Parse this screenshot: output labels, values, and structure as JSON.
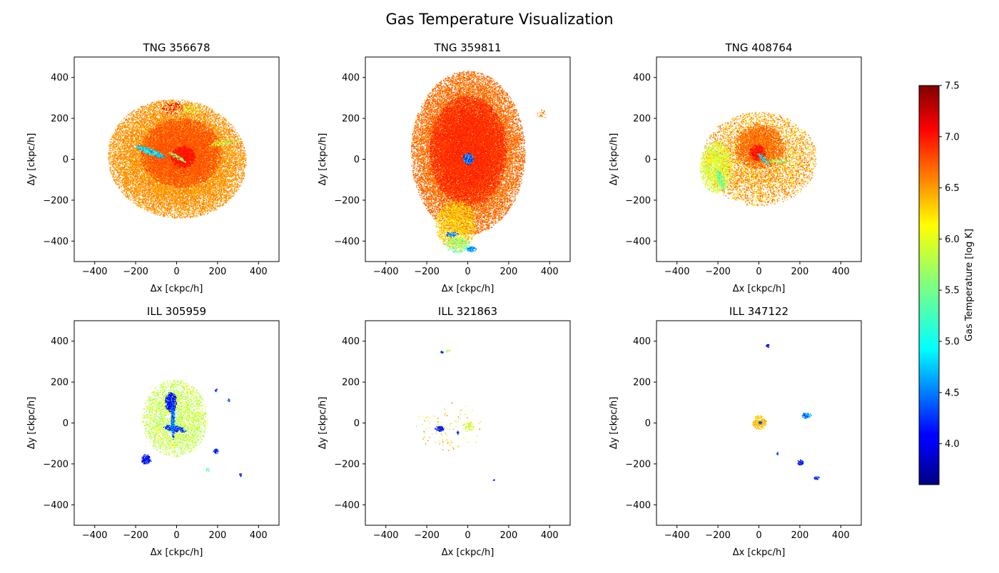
{
  "figure_title": "Gas Temperature Visualization",
  "colors": {
    "axes": "#000000",
    "background": "#ffffff"
  },
  "chart_data": {
    "type": "heatmap",
    "title": "Gas Temperature Visualization",
    "shared": {
      "xlabel": "Δx [ckpc/h]",
      "ylabel": "Δy [ckpc/h]",
      "xlim": [
        -500,
        500
      ],
      "ylim": [
        -500,
        500
      ],
      "xticks": [
        -400,
        -200,
        0,
        200,
        400
      ],
      "yticks": [
        -400,
        -200,
        0,
        200,
        400
      ],
      "grid": false
    },
    "colorbar": {
      "label": "Gas Temperature [log K]",
      "colormap": "jet",
      "range": [
        3.6,
        7.5
      ],
      "ticks": [
        4.0,
        4.5,
        5.0,
        5.5,
        6.0,
        6.5,
        7.0,
        7.5
      ],
      "tick_labels": [
        "4.0",
        "4.5",
        "5.0",
        "5.5",
        "6.0",
        "6.5",
        "7.0",
        "7.5"
      ],
      "placement": "right"
    },
    "panels": [
      {
        "title": "TNG 356678",
        "features": [
          {
            "kind": "blob",
            "cx": 0,
            "cy": 0,
            "rx": 340,
            "ry": 290,
            "angle": -10,
            "temp": 6.45,
            "density": 0.85,
            "jitter": 0.15
          },
          {
            "kind": "blob",
            "cx": 20,
            "cy": 30,
            "rx": 200,
            "ry": 170,
            "angle": 0,
            "temp": 6.7,
            "density": 0.85,
            "jitter": 0.1
          },
          {
            "kind": "blob",
            "cx": 30,
            "cy": 10,
            "rx": 60,
            "ry": 55,
            "angle": 0,
            "temp": 6.95,
            "density": 0.9,
            "jitter": 0.05
          },
          {
            "kind": "blob",
            "cx": -130,
            "cy": 35,
            "rx": 80,
            "ry": 15,
            "angle": -20,
            "temp": 5.0,
            "density": 0.9,
            "jitter": 0.5
          },
          {
            "kind": "blob",
            "cx": 0,
            "cy": 10,
            "rx": 50,
            "ry": 10,
            "angle": -30,
            "temp": 5.6,
            "density": 0.6,
            "jitter": 0.4
          },
          {
            "kind": "blob",
            "cx": 230,
            "cy": 80,
            "rx": 80,
            "ry": 12,
            "angle": 10,
            "temp": 5.8,
            "density": 0.5,
            "jitter": 0.4
          },
          {
            "kind": "blob",
            "cx": 70,
            "cy": 240,
            "rx": 40,
            "ry": 30,
            "angle": 0,
            "temp": 6.0,
            "density": 0.4,
            "jitter": 0.4
          },
          {
            "kind": "blob",
            "cx": -20,
            "cy": 250,
            "rx": 60,
            "ry": 30,
            "angle": 0,
            "temp": 7.0,
            "density": 0.25,
            "jitter": 0.3
          }
        ]
      },
      {
        "title": "TNG 359811",
        "features": [
          {
            "kind": "blob",
            "cx": 0,
            "cy": 30,
            "rx": 280,
            "ry": 400,
            "angle": 0,
            "temp": 6.6,
            "density": 0.85,
            "jitter": 0.15
          },
          {
            "kind": "blob",
            "cx": 0,
            "cy": 40,
            "rx": 190,
            "ry": 270,
            "angle": 0,
            "temp": 6.85,
            "density": 0.9,
            "jitter": 0.1
          },
          {
            "kind": "blob",
            "cx": -60,
            "cy": -320,
            "rx": 100,
            "ry": 120,
            "angle": 0,
            "temp": 6.2,
            "density": 0.6,
            "jitter": 0.3
          },
          {
            "kind": "blob",
            "cx": 0,
            "cy": 0,
            "rx": 28,
            "ry": 28,
            "angle": 0,
            "temp": 4.5,
            "density": 0.95,
            "jitter": 0.6
          },
          {
            "kind": "blob",
            "cx": -80,
            "cy": -370,
            "rx": 35,
            "ry": 12,
            "angle": 0,
            "temp": 4.5,
            "density": 0.9,
            "jitter": 0.5
          },
          {
            "kind": "blob",
            "cx": 15,
            "cy": -440,
            "rx": 25,
            "ry": 15,
            "angle": 0,
            "temp": 4.7,
            "density": 0.9,
            "jitter": 0.5
          },
          {
            "kind": "blob",
            "cx": -50,
            "cy": -420,
            "rx": 60,
            "ry": 40,
            "angle": 0,
            "temp": 5.6,
            "density": 0.5,
            "jitter": 0.4
          },
          {
            "kind": "blob",
            "cx": 360,
            "cy": 220,
            "rx": 25,
            "ry": 25,
            "angle": 0,
            "temp": 6.5,
            "density": 0.3,
            "jitter": 0.2
          }
        ]
      },
      {
        "title": "TNG 408764",
        "features": [
          {
            "kind": "blob",
            "cx": 0,
            "cy": 0,
            "rx": 280,
            "ry": 230,
            "angle": 0,
            "temp": 6.4,
            "density": 0.45,
            "jitter": 0.3
          },
          {
            "kind": "blob",
            "cx": -210,
            "cy": -40,
            "rx": 80,
            "ry": 130,
            "angle": 0,
            "temp": 5.9,
            "density": 0.6,
            "jitter": 0.25
          },
          {
            "kind": "blob",
            "cx": 0,
            "cy": 60,
            "rx": 120,
            "ry": 110,
            "angle": 0,
            "temp": 6.6,
            "density": 0.85,
            "jitter": 0.15
          },
          {
            "kind": "blob",
            "cx": -10,
            "cy": 30,
            "rx": 40,
            "ry": 40,
            "angle": 0,
            "temp": 6.95,
            "density": 0.9,
            "jitter": 0.1
          },
          {
            "kind": "blob",
            "cx": 20,
            "cy": 0,
            "rx": 40,
            "ry": 10,
            "angle": -45,
            "temp": 5.0,
            "density": 0.8,
            "jitter": 0.5
          },
          {
            "kind": "blob",
            "cx": -190,
            "cy": -100,
            "rx": 15,
            "ry": 60,
            "angle": 20,
            "temp": 5.4,
            "density": 0.6,
            "jitter": 0.4
          },
          {
            "kind": "blob",
            "cx": 90,
            "cy": -10,
            "rx": 60,
            "ry": 10,
            "angle": 0,
            "temp": 5.6,
            "density": 0.5,
            "jitter": 0.4
          }
        ]
      },
      {
        "title": "ILL 305959",
        "features": [
          {
            "kind": "blob",
            "cx": -10,
            "cy": 20,
            "rx": 160,
            "ry": 190,
            "angle": 0,
            "temp": 5.8,
            "density": 0.45,
            "jitter": 0.25
          },
          {
            "kind": "blob",
            "cx": -30,
            "cy": 100,
            "rx": 30,
            "ry": 50,
            "angle": 0,
            "temp": 4.1,
            "density": 0.95,
            "jitter": 0.3
          },
          {
            "kind": "blob",
            "cx": -10,
            "cy": -30,
            "rx": 60,
            "ry": 15,
            "angle": -10,
            "temp": 4.3,
            "density": 0.85,
            "jitter": 0.4
          },
          {
            "kind": "blob",
            "cx": -20,
            "cy": 10,
            "rx": 10,
            "ry": 100,
            "angle": 0,
            "temp": 4.5,
            "density": 0.8,
            "jitter": 0.4
          },
          {
            "kind": "blob",
            "cx": -150,
            "cy": -180,
            "rx": 25,
            "ry": 25,
            "angle": 0,
            "temp": 4.1,
            "density": 0.9,
            "jitter": 0.3
          },
          {
            "kind": "blob",
            "cx": 190,
            "cy": -140,
            "rx": 12,
            "ry": 12,
            "angle": 0,
            "temp": 4.2,
            "density": 0.9,
            "jitter": 0.3
          },
          {
            "kind": "blob",
            "cx": 250,
            "cy": 110,
            "rx": 10,
            "ry": 8,
            "angle": 0,
            "temp": 4.3,
            "density": 0.9,
            "jitter": 0.3
          },
          {
            "kind": "blob",
            "cx": 190,
            "cy": 160,
            "rx": 6,
            "ry": 8,
            "angle": 0,
            "temp": 4.3,
            "density": 0.9,
            "jitter": 0.3
          },
          {
            "kind": "blob",
            "cx": 310,
            "cy": -255,
            "rx": 6,
            "ry": 8,
            "angle": 0,
            "temp": 4.2,
            "density": 0.9,
            "jitter": 0.3
          },
          {
            "kind": "blob",
            "cx": 150,
            "cy": -230,
            "rx": 10,
            "ry": 10,
            "angle": 0,
            "temp": 5.4,
            "density": 0.5,
            "jitter": 0.3
          }
        ]
      },
      {
        "title": "ILL 321863",
        "features": [
          {
            "kind": "blob",
            "cx": -140,
            "cy": -30,
            "rx": 25,
            "ry": 15,
            "angle": 0,
            "temp": 4.2,
            "density": 0.9,
            "jitter": 0.3
          },
          {
            "kind": "blob",
            "cx": -50,
            "cy": -50,
            "rx": 8,
            "ry": 8,
            "angle": 0,
            "temp": 4.2,
            "density": 0.9,
            "jitter": 0.3
          },
          {
            "kind": "blob",
            "cx": 0,
            "cy": -20,
            "rx": 30,
            "ry": 25,
            "angle": 0,
            "temp": 5.9,
            "density": 0.45,
            "jitter": 0.3
          },
          {
            "kind": "blob",
            "cx": -130,
            "cy": 345,
            "rx": 8,
            "ry": 5,
            "angle": 0,
            "temp": 4.3,
            "density": 0.9,
            "jitter": 0.3
          },
          {
            "kind": "blob",
            "cx": -100,
            "cy": 350,
            "rx": 12,
            "ry": 6,
            "angle": 0,
            "temp": 5.8,
            "density": 0.5,
            "jitter": 0.3
          },
          {
            "kind": "blob",
            "cx": 125,
            "cy": -280,
            "rx": 6,
            "ry": 3,
            "angle": 0,
            "temp": 4.2,
            "density": 0.9,
            "jitter": 0.3
          },
          {
            "kind": "blob",
            "cx": -80,
            "cy": -20,
            "rx": 180,
            "ry": 120,
            "angle": 0,
            "temp": 6.1,
            "density": 0.03,
            "jitter": 0.6
          }
        ]
      },
      {
        "title": "ILL 347122",
        "features": [
          {
            "kind": "blob",
            "cx": 0,
            "cy": 0,
            "rx": 35,
            "ry": 35,
            "angle": 0,
            "temp": 6.3,
            "density": 0.8,
            "jitter": 0.25
          },
          {
            "kind": "blob",
            "cx": 5,
            "cy": 0,
            "rx": 10,
            "ry": 10,
            "angle": 0,
            "temp": 4.3,
            "density": 0.9,
            "jitter": 0.4
          },
          {
            "kind": "blob",
            "cx": 230,
            "cy": 35,
            "rx": 25,
            "ry": 15,
            "angle": 0,
            "temp": 4.6,
            "density": 0.9,
            "jitter": 0.4
          },
          {
            "kind": "blob",
            "cx": 200,
            "cy": -195,
            "rx": 15,
            "ry": 15,
            "angle": 0,
            "temp": 4.1,
            "density": 0.9,
            "jitter": 0.3
          },
          {
            "kind": "blob",
            "cx": 280,
            "cy": -270,
            "rx": 15,
            "ry": 8,
            "angle": 0,
            "temp": 4.2,
            "density": 0.9,
            "jitter": 0.3
          },
          {
            "kind": "blob",
            "cx": 40,
            "cy": 375,
            "rx": 8,
            "ry": 10,
            "angle": 0,
            "temp": 4.2,
            "density": 0.9,
            "jitter": 0.3
          },
          {
            "kind": "blob",
            "cx": 90,
            "cy": -150,
            "rx": 5,
            "ry": 8,
            "angle": 0,
            "temp": 4.3,
            "density": 0.9,
            "jitter": 0.3
          }
        ]
      }
    ]
  }
}
